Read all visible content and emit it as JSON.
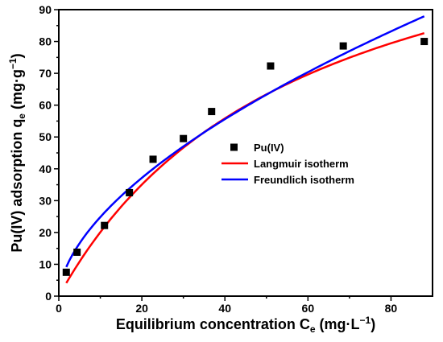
{
  "chart_data": {
    "type": "scatter",
    "xlabel_main": "Equilibrium concentration C",
    "xlabel_sub": "e",
    "xlabel_unit": " (mg·L",
    "xlabel_unit_sup": "−1",
    "xlabel_close": ")",
    "ylabel_main": "Pu(IV) adsorption q",
    "ylabel_sub": "e",
    "ylabel_unit": " (mg·g",
    "ylabel_unit_sup": "−1",
    "ylabel_close": ")",
    "xlim": [
      0,
      90
    ],
    "ylim": [
      0,
      90
    ],
    "xticks": [
      0,
      20,
      40,
      60,
      80
    ],
    "yticks": [
      0,
      10,
      20,
      30,
      40,
      50,
      60,
      70,
      80,
      90
    ],
    "legend_position": "center-right",
    "series": [
      {
        "name": "Pu(IV)",
        "kind": "points",
        "color": "#000000",
        "x": [
          1.8,
          4.4,
          11.0,
          17.0,
          22.7,
          30.0,
          36.8,
          51.0,
          68.5,
          88.0
        ],
        "y": [
          7.5,
          13.8,
          22.2,
          32.5,
          43.0,
          49.5,
          58.0,
          72.3,
          78.6,
          80.0
        ]
      },
      {
        "name": "Langmuir isotherm",
        "kind": "line",
        "color": "#ff0000",
        "model": "langmuir",
        "params": {
          "qmax": 137.5,
          "KL": 0.0171
        },
        "x_range": [
          1.8,
          88.0
        ]
      },
      {
        "name": "Freundlich isotherm",
        "kind": "line",
        "color": "#0000ff",
        "model": "freundlich",
        "params": {
          "KF": 6.51,
          "n": 1.72
        },
        "x_range": [
          1.8,
          88.0
        ]
      }
    ]
  }
}
